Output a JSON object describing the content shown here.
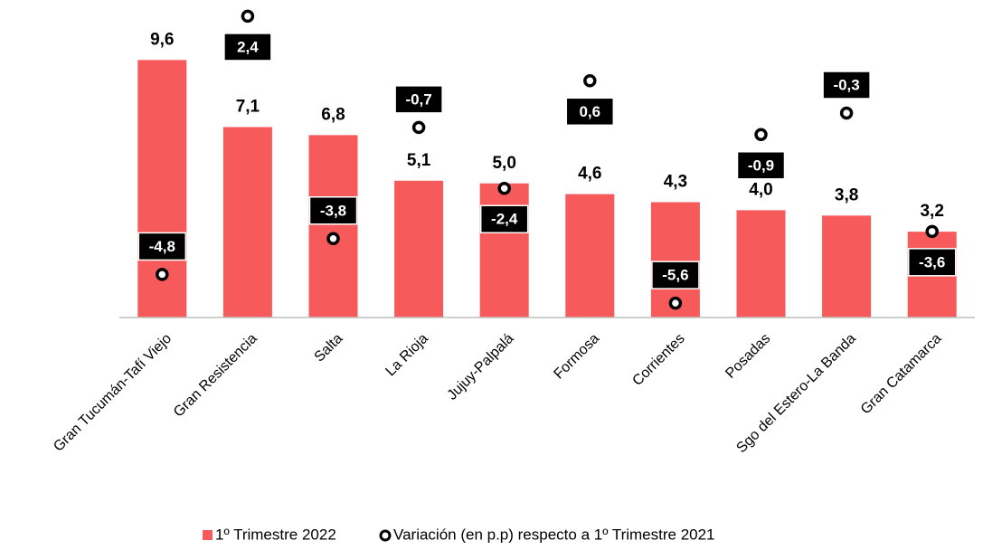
{
  "chart_data": {
    "type": "bar",
    "categories": [
      "Gran Tucumán-Tafí Viejo",
      "Gran Resistencia",
      "Salta",
      "La Rioja",
      "Jujuy-Palpalá",
      "Formosa",
      "Corrientes",
      "Posadas",
      "Sgo del Estero-La Banda",
      "Gran Catamarca"
    ],
    "ylim": [
      0,
      11.5
    ],
    "y2lim": [
      -6,
      2.6
    ],
    "series": [
      {
        "name": "1º Trimestre 2022",
        "type": "bar",
        "color": "#f65a5a",
        "values": [
          9.6,
          7.1,
          6.8,
          5.1,
          5.0,
          4.6,
          4.3,
          4.0,
          3.8,
          3.2
        ],
        "value_labels": [
          "9,6",
          "7,1",
          "6,8",
          "5,1",
          "5,0",
          "4,6",
          "4,3",
          "4,0",
          "3,8",
          "3,2"
        ]
      },
      {
        "name": "Variación (en p.p) respecto a 1º Trimestre 2021",
        "type": "scatter",
        "axis": "y2",
        "color": "#000000",
        "values": [
          -4.8,
          2.4,
          -3.8,
          -0.7,
          -2.4,
          0.6,
          -5.6,
          -0.9,
          -0.3,
          -3.6
        ],
        "value_labels": [
          "-4,8",
          "2,4",
          "-3,8",
          "-0,7",
          "-2,4",
          "0,6",
          "-5,6",
          "-0,9",
          "-0,3",
          "-3,6"
        ]
      }
    ]
  }
}
